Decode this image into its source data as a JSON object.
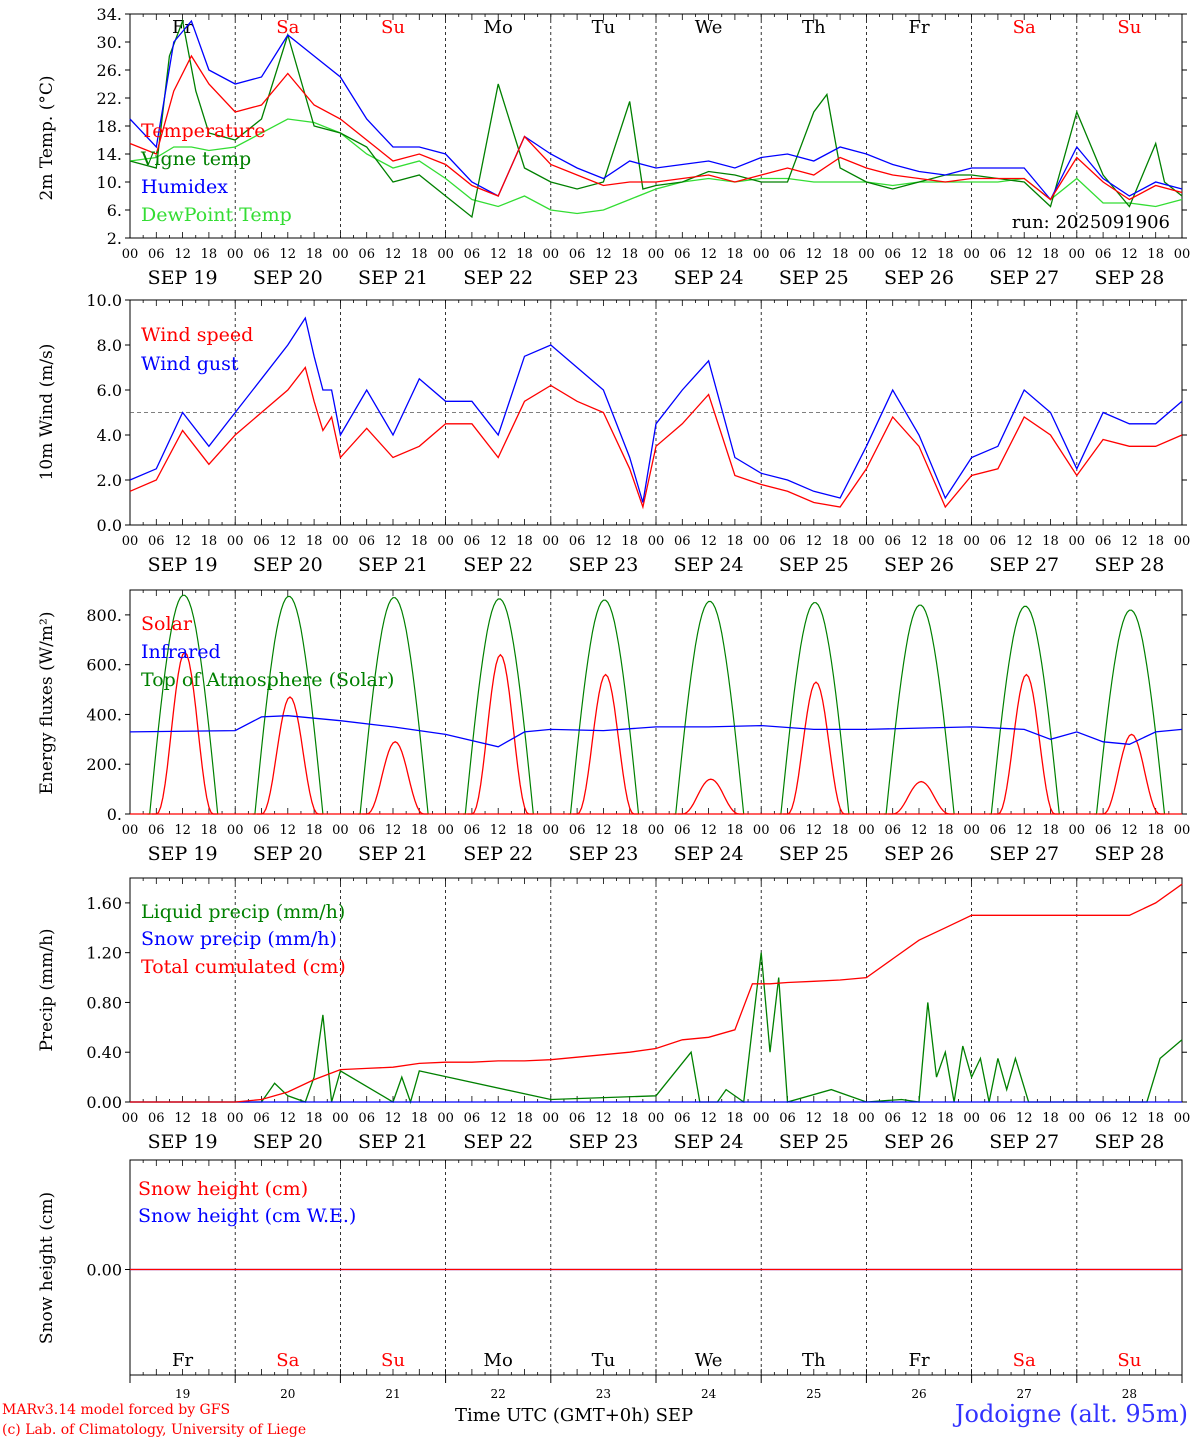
{
  "days": {
    "abbrev": [
      "Fr",
      "Sa",
      "Su",
      "Mo",
      "Tu",
      "We",
      "Th",
      "Fr",
      "Sa",
      "Su"
    ],
    "weekend_flags": [
      false,
      true,
      true,
      false,
      false,
      false,
      false,
      false,
      true,
      true
    ],
    "dates": [
      "SEP 19",
      "SEP 20",
      "SEP 21",
      "SEP 22",
      "SEP 23",
      "SEP 24",
      "SEP 25",
      "SEP 26",
      "SEP 27",
      "SEP 28"
    ],
    "day_numbers": [
      "19",
      "20",
      "21",
      "22",
      "23",
      "24",
      "25",
      "26",
      "27",
      "28"
    ],
    "hour_ticks": [
      "00",
      "06",
      "12",
      "18"
    ]
  },
  "colors": {
    "red": "#ff0000",
    "green": "#008000",
    "blue": "#0000ff",
    "lightgreen": "#33dd33",
    "axis": "#000000"
  },
  "footer": {
    "credit_line1": "MARv3.14 model forced by GFS",
    "credit_line2": "(c) Lab. of Climatology, University of Liege",
    "time_label": "Time UTC (GMT+0h) SEP",
    "location": "Jodoigne (alt. 95m)"
  },
  "chart_data": [
    {
      "type": "line",
      "ylabel": "2m Temp. (°C)",
      "ylim": [
        2,
        34
      ],
      "yticks": [
        "2.",
        "6.",
        "10.",
        "14.",
        "18.",
        "22.",
        "26.",
        "30.",
        "34."
      ],
      "annotation": "run: 2025091906",
      "x_unit": "hours since SEP 19 00 UTC",
      "series": [
        {
          "name": "Temperature",
          "color": "#ff0000",
          "x": [
            0,
            6,
            10,
            14,
            18,
            24,
            30,
            36,
            42,
            48,
            54,
            60,
            66,
            72,
            78,
            84,
            90,
            96,
            102,
            108,
            114,
            120,
            126,
            132,
            138,
            144,
            150,
            156,
            162,
            168,
            174,
            180,
            186,
            192,
            198,
            204,
            210,
            216,
            222,
            228,
            234,
            240
          ],
          "y": [
            15.5,
            14,
            23,
            28,
            24,
            20,
            21,
            25.5,
            21,
            19,
            16,
            13,
            14,
            12.5,
            9.5,
            8,
            16.5,
            12.5,
            11,
            9.5,
            10,
            10,
            10.5,
            11,
            10,
            11,
            12,
            11,
            13.5,
            12,
            11,
            10.5,
            10,
            10.5,
            10.5,
            10.5,
            7.5,
            13.5,
            10,
            7.5,
            9.5,
            8.5
          ]
        },
        {
          "name": "Vigne temp",
          "color": "#008000",
          "x": [
            0,
            6,
            9,
            12,
            15,
            18,
            24,
            30,
            36,
            42,
            48,
            54,
            60,
            66,
            72,
            78,
            84,
            87,
            90,
            96,
            102,
            108,
            114,
            117,
            120,
            126,
            132,
            138,
            144,
            150,
            156,
            159,
            162,
            168,
            174,
            180,
            186,
            192,
            198,
            204,
            210,
            216,
            222,
            228,
            234,
            236,
            240
          ],
          "y": [
            13,
            12,
            28,
            33,
            23,
            17,
            16,
            19,
            31,
            18,
            17,
            15,
            10,
            11,
            8,
            5,
            24,
            18,
            12,
            10,
            9,
            10,
            21.5,
            9,
            9.5,
            10,
            11.5,
            11,
            10,
            10,
            20,
            22.5,
            12,
            10,
            9,
            10,
            11,
            11,
            10.5,
            10,
            6.5,
            20,
            11,
            6.5,
            15.5,
            10,
            8
          ]
        },
        {
          "name": "Humidex",
          "color": "#0000ff",
          "x": [
            0,
            6,
            10,
            14,
            18,
            24,
            30,
            36,
            42,
            48,
            54,
            60,
            66,
            72,
            78,
            84,
            90,
            96,
            102,
            108,
            114,
            120,
            126,
            132,
            138,
            144,
            150,
            156,
            162,
            168,
            174,
            180,
            186,
            192,
            198,
            204,
            210,
            216,
            222,
            228,
            234,
            240
          ],
          "y": [
            19,
            15,
            30,
            33,
            26,
            24,
            25,
            31,
            28,
            25,
            19,
            15,
            15,
            14,
            10,
            8,
            16.5,
            14,
            12,
            10.5,
            13,
            12,
            12.5,
            13,
            12,
            13.5,
            14,
            13,
            15,
            14,
            12.5,
            11.5,
            11,
            12,
            12,
            12,
            7.5,
            15,
            10.5,
            8,
            10,
            9
          ]
        },
        {
          "name": "DewPoint Temp",
          "color": "#33dd33",
          "x": [
            0,
            6,
            10,
            14,
            18,
            24,
            30,
            36,
            42,
            48,
            54,
            60,
            66,
            72,
            78,
            84,
            90,
            96,
            102,
            108,
            114,
            120,
            126,
            132,
            138,
            144,
            150,
            156,
            162,
            168,
            174,
            180,
            186,
            192,
            198,
            204,
            210,
            216,
            222,
            228,
            234,
            240
          ],
          "y": [
            13,
            13.5,
            15,
            15,
            14.5,
            15,
            17,
            19,
            18.5,
            17,
            14,
            12,
            13,
            10.5,
            7.5,
            6.5,
            8,
            6,
            5.5,
            6,
            7.5,
            9,
            10,
            10.5,
            10,
            10.5,
            10.5,
            10,
            10,
            10,
            9.5,
            10,
            10,
            10,
            10,
            10.5,
            7.5,
            10.5,
            7,
            7,
            6.5,
            7.5
          ]
        }
      ]
    },
    {
      "type": "line",
      "ylabel": "10m Wind (m/s)",
      "ylim": [
        0,
        10
      ],
      "yticks": [
        "0.0",
        "2.0",
        "4.0",
        "6.0",
        "8.0",
        "10.0"
      ],
      "reference_line": 5,
      "series": [
        {
          "name": "Wind speed",
          "color": "#ff0000",
          "x": [
            0,
            6,
            12,
            18,
            24,
            30,
            36,
            40,
            42,
            44,
            46,
            48,
            54,
            60,
            66,
            72,
            78,
            84,
            90,
            96,
            102,
            108,
            114,
            117,
            120,
            126,
            132,
            138,
            144,
            150,
            156,
            162,
            168,
            174,
            180,
            186,
            192,
            198,
            204,
            210,
            216,
            222,
            228,
            234,
            240
          ],
          "y": [
            1.5,
            2,
            4.2,
            2.7,
            4,
            5,
            6,
            7,
            5.5,
            4.2,
            4.8,
            3,
            4.3,
            3,
            3.5,
            4.5,
            4.5,
            3,
            5.5,
            6.2,
            5.5,
            5,
            2.5,
            0.8,
            3.5,
            4.5,
            5.8,
            2.2,
            1.8,
            1.5,
            1,
            0.8,
            2.5,
            4.8,
            3.5,
            0.8,
            2.2,
            2.5,
            4.8,
            4,
            2.2,
            3.8,
            3.5,
            3.5,
            4
          ]
        },
        {
          "name": "Wind gust",
          "color": "#0000ff",
          "x": [
            0,
            6,
            12,
            18,
            24,
            30,
            36,
            40,
            42,
            44,
            46,
            48,
            54,
            60,
            66,
            72,
            78,
            84,
            90,
            96,
            102,
            108,
            114,
            117,
            120,
            126,
            132,
            138,
            144,
            150,
            156,
            162,
            168,
            174,
            180,
            186,
            192,
            198,
            204,
            210,
            216,
            222,
            228,
            234,
            240
          ],
          "y": [
            2,
            2.5,
            5,
            3.5,
            5,
            6.5,
            8,
            9.2,
            7.5,
            6,
            6,
            4,
            6,
            4,
            6.5,
            5.5,
            5.5,
            4,
            7.5,
            8,
            7,
            6,
            3,
            1,
            4.5,
            6,
            7.3,
            3,
            2.3,
            2,
            1.5,
            1.2,
            3.5,
            6,
            4,
            1.2,
            3,
            3.5,
            6,
            5,
            2.5,
            5,
            4.5,
            4.5,
            5.5
          ]
        }
      ]
    },
    {
      "type": "line",
      "ylabel": "Energy fluxes (W/m²)",
      "ylim": [
        0,
        900
      ],
      "yticks": [
        "0.",
        "200.",
        "400.",
        "600.",
        "800."
      ],
      "series": [
        {
          "name": "Solar",
          "color": "#ff0000",
          "peaks": [
            650,
            470,
            290,
            640,
            560,
            140,
            530,
            130,
            560,
            320
          ]
        },
        {
          "name": "Infrared",
          "color": "#0000ff",
          "x": [
            0,
            24,
            30,
            36,
            48,
            60,
            72,
            84,
            90,
            96,
            108,
            120,
            132,
            144,
            156,
            168,
            180,
            192,
            204,
            210,
            216,
            222,
            228,
            234,
            240
          ],
          "y": [
            330,
            335,
            390,
            395,
            375,
            350,
            320,
            270,
            330,
            340,
            335,
            350,
            350,
            355,
            340,
            340,
            345,
            350,
            340,
            300,
            330,
            290,
            280,
            330,
            340
          ]
        },
        {
          "name": "Top of Atmosphere (Solar)",
          "color": "#008000",
          "peaks": [
            880,
            875,
            870,
            865,
            860,
            855,
            850,
            840,
            835,
            820
          ]
        }
      ]
    },
    {
      "type": "line",
      "ylabel": "Precip (mm/h)",
      "ylim": [
        0,
        1.8
      ],
      "yticks": [
        "0.00",
        "0.40",
        "0.80",
        "1.20",
        "1.60"
      ],
      "series": [
        {
          "name": "Liquid precip (mm/h)",
          "color": "#008000",
          "x": [
            0,
            24,
            30,
            33,
            36,
            40,
            42,
            44,
            46,
            48,
            60,
            62,
            64,
            66,
            96,
            120,
            128,
            130,
            134,
            136,
            140,
            142,
            144,
            146,
            148,
            150,
            160,
            168,
            176,
            180,
            182,
            184,
            186,
            188,
            190,
            192,
            194,
            196,
            198,
            200,
            202,
            205,
            214,
            232,
            235,
            240
          ],
          "y": [
            0,
            0,
            0,
            0.15,
            0.05,
            0,
            0.2,
            0.7,
            0,
            0.25,
            0,
            0.2,
            0,
            0.25,
            0.02,
            0.05,
            0.4,
            0,
            0,
            0.1,
            0,
            0.6,
            1.2,
            0.4,
            1.0,
            0,
            0.1,
            0,
            0.02,
            0,
            0.8,
            0.2,
            0.4,
            0,
            0.45,
            0.2,
            0.35,
            0,
            0.35,
            0.1,
            0.35,
            0,
            0,
            0,
            0.35,
            0.5
          ]
        },
        {
          "name": "Snow precip (mm/h)",
          "color": "#0000ff",
          "x": [
            0,
            240
          ],
          "y": [
            0,
            0
          ]
        },
        {
          "name": "Total cumulated (cm)",
          "color": "#ff0000",
          "x": [
            0,
            24,
            30,
            36,
            42,
            48,
            54,
            60,
            66,
            72,
            78,
            84,
            90,
            96,
            102,
            108,
            114,
            120,
            126,
            132,
            138,
            142,
            146,
            150,
            156,
            162,
            168,
            174,
            180,
            186,
            192,
            198,
            204,
            210,
            216,
            222,
            228,
            234,
            240
          ],
          "y": [
            0,
            0,
            0.02,
            0.08,
            0.18,
            0.26,
            0.27,
            0.28,
            0.31,
            0.32,
            0.32,
            0.33,
            0.33,
            0.34,
            0.36,
            0.38,
            0.4,
            0.43,
            0.5,
            0.52,
            0.58,
            0.95,
            0.95,
            0.96,
            0.97,
            0.98,
            1.0,
            1.15,
            1.3,
            1.4,
            1.5,
            1.5,
            1.5,
            1.5,
            1.5,
            1.5,
            1.5,
            1.6,
            1.75
          ]
        }
      ]
    },
    {
      "type": "line",
      "ylabel": "Snow height (cm)",
      "yticks": [
        "0.00"
      ],
      "series": [
        {
          "name": "Snow height (cm)",
          "color": "#ff0000",
          "x": [
            0,
            240
          ],
          "y": [
            0,
            0
          ]
        },
        {
          "name": "Snow height (cm W.E.)",
          "color": "#0000ff",
          "x": [
            0,
            240
          ],
          "y": [
            0,
            0
          ]
        }
      ]
    }
  ]
}
